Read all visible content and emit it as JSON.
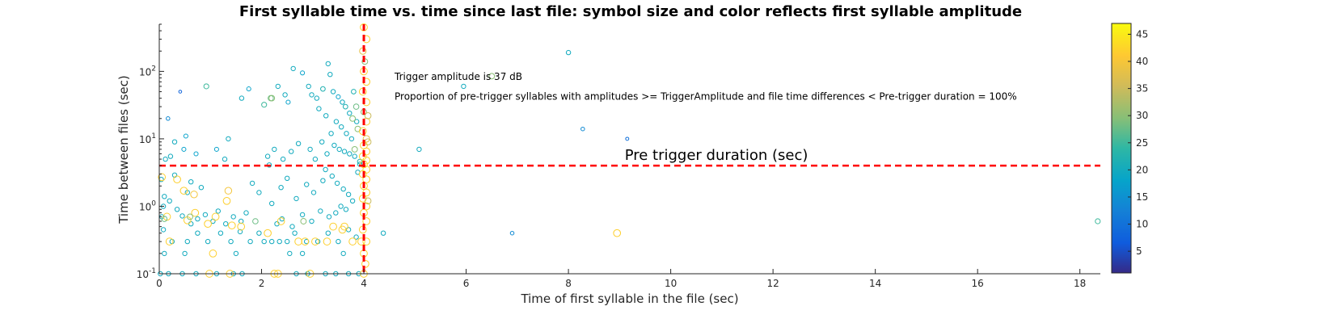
{
  "chart_data": {
    "type": "scatter",
    "title": "First syllable time vs. time since last file: symbol size and color reflects first syllable amplitude",
    "xlabel": "Time of first syllable in the file (sec)",
    "ylabel": "Time between files (sec)",
    "xlim": [
      0,
      18.4
    ],
    "ylim": [
      0.1,
      500
    ],
    "yscale": "log",
    "x_ticks": [
      0,
      2,
      4,
      6,
      8,
      10,
      12,
      14,
      16,
      18
    ],
    "y_ticks": [
      {
        "value": 0.1,
        "base": "10",
        "exp": "-1"
      },
      {
        "value": 1,
        "base": "10",
        "exp": "0"
      },
      {
        "value": 10,
        "base": "10",
        "exp": "1"
      },
      {
        "value": 100,
        "base": "10",
        "exp": "2"
      }
    ],
    "grid": false,
    "colorbar": {
      "range": [
        1,
        47
      ],
      "ticks": [
        5,
        10,
        15,
        20,
        25,
        30,
        35,
        40,
        45
      ],
      "colormap": "parula",
      "position": "right"
    },
    "reference_lines": [
      {
        "orientation": "vertical",
        "x": 4,
        "color": "#ff0000",
        "style": "dashed"
      },
      {
        "orientation": "horizontal",
        "y": 4,
        "color": "#ff0000",
        "style": "dashed"
      }
    ],
    "annotations": [
      {
        "text": "Trigger amplitude is 37 dB",
        "x": 4.6,
        "y": 75
      },
      {
        "text": "Proportion of pre-trigger syllables with amplitudes >= TriggerAmplitude and file time differences < Pre-trigger duration = 100%",
        "x": 4.6,
        "y": 38
      },
      {
        "text": "Pre trigger duration (sec)",
        "x": 9.1,
        "y": 4.9
      }
    ],
    "points": [
      {
        "x": 0.41,
        "y": 50,
        "a": 8
      },
      {
        "x": 0.17,
        "y": 20,
        "a": 14
      },
      {
        "x": 0.92,
        "y": 60,
        "a": 25
      },
      {
        "x": 1.61,
        "y": 40,
        "a": 20
      },
      {
        "x": 1.75,
        "y": 55,
        "a": 18
      },
      {
        "x": 2.05,
        "y": 32,
        "a": 25
      },
      {
        "x": 2.18,
        "y": 40,
        "a": 28
      },
      {
        "x": 2.32,
        "y": 60,
        "a": 20
      },
      {
        "x": 2.46,
        "y": 45,
        "a": 20
      },
      {
        "x": 2.52,
        "y": 35,
        "a": 18
      },
      {
        "x": 2.62,
        "y": 110,
        "a": 20
      },
      {
        "x": 2.8,
        "y": 95,
        "a": 18
      },
      {
        "x": 2.92,
        "y": 60,
        "a": 20
      },
      {
        "x": 2.98,
        "y": 45,
        "a": 20
      },
      {
        "x": 3.08,
        "y": 40,
        "a": 20
      },
      {
        "x": 3.2,
        "y": 55,
        "a": 22
      },
      {
        "x": 3.3,
        "y": 130,
        "a": 20
      },
      {
        "x": 3.34,
        "y": 90,
        "a": 20
      },
      {
        "x": 3.4,
        "y": 50,
        "a": 20
      },
      {
        "x": 3.5,
        "y": 42,
        "a": 18
      },
      {
        "x": 3.58,
        "y": 35,
        "a": 20
      },
      {
        "x": 3.64,
        "y": 30,
        "a": 22
      },
      {
        "x": 3.72,
        "y": 24,
        "a": 20
      },
      {
        "x": 3.8,
        "y": 50,
        "a": 22
      },
      {
        "x": 3.86,
        "y": 18,
        "a": 20
      },
      {
        "x": 3.12,
        "y": 28,
        "a": 20
      },
      {
        "x": 3.26,
        "y": 22,
        "a": 20
      },
      {
        "x": 3.46,
        "y": 18,
        "a": 20
      },
      {
        "x": 3.56,
        "y": 15,
        "a": 20
      },
      {
        "x": 3.66,
        "y": 12,
        "a": 20
      },
      {
        "x": 3.76,
        "y": 10,
        "a": 20
      },
      {
        "x": 3.36,
        "y": 12,
        "a": 20
      },
      {
        "x": 3.18,
        "y": 9,
        "a": 20
      },
      {
        "x": 3.42,
        "y": 8,
        "a": 20
      },
      {
        "x": 3.52,
        "y": 7,
        "a": 20
      },
      {
        "x": 3.62,
        "y": 6.5,
        "a": 20
      },
      {
        "x": 3.72,
        "y": 6,
        "a": 20
      },
      {
        "x": 3.82,
        "y": 5.5,
        "a": 20
      },
      {
        "x": 3.28,
        "y": 6,
        "a": 20
      },
      {
        "x": 3.05,
        "y": 5,
        "a": 20
      },
      {
        "x": 2.95,
        "y": 7,
        "a": 20
      },
      {
        "x": 2.72,
        "y": 8.5,
        "a": 20
      },
      {
        "x": 2.58,
        "y": 6.5,
        "a": 20
      },
      {
        "x": 2.42,
        "y": 5,
        "a": 20
      },
      {
        "x": 2.25,
        "y": 7,
        "a": 20
      },
      {
        "x": 2.12,
        "y": 5.5,
        "a": 20
      },
      {
        "x": 1.35,
        "y": 10,
        "a": 20
      },
      {
        "x": 1.28,
        "y": 5,
        "a": 20
      },
      {
        "x": 1.12,
        "y": 7,
        "a": 18
      },
      {
        "x": 0.72,
        "y": 6,
        "a": 18
      },
      {
        "x": 0.52,
        "y": 11,
        "a": 18
      },
      {
        "x": 0.3,
        "y": 9,
        "a": 20
      },
      {
        "x": 0.48,
        "y": 7,
        "a": 18
      },
      {
        "x": 0.12,
        "y": 5,
        "a": 20
      },
      {
        "x": 0.22,
        "y": 5.5,
        "a": 20
      },
      {
        "x": 3.25,
        "y": 3.5,
        "a": 20
      },
      {
        "x": 3.38,
        "y": 2.8,
        "a": 20
      },
      {
        "x": 3.48,
        "y": 2.2,
        "a": 20
      },
      {
        "x": 3.6,
        "y": 1.8,
        "a": 20
      },
      {
        "x": 3.7,
        "y": 1.5,
        "a": 20
      },
      {
        "x": 3.78,
        "y": 1.2,
        "a": 20
      },
      {
        "x": 3.88,
        "y": 3.2,
        "a": 20
      },
      {
        "x": 3.2,
        "y": 2.4,
        "a": 20
      },
      {
        "x": 3.02,
        "y": 1.6,
        "a": 20
      },
      {
        "x": 2.88,
        "y": 2.1,
        "a": 20
      },
      {
        "x": 2.68,
        "y": 1.3,
        "a": 20
      },
      {
        "x": 2.5,
        "y": 2.6,
        "a": 20
      },
      {
        "x": 2.38,
        "y": 1.9,
        "a": 20
      },
      {
        "x": 2.2,
        "y": 1.1,
        "a": 20
      },
      {
        "x": 1.95,
        "y": 1.6,
        "a": 20
      },
      {
        "x": 1.82,
        "y": 2.2,
        "a": 20
      },
      {
        "x": 3.55,
        "y": 1.0,
        "a": 20
      },
      {
        "x": 3.65,
        "y": 0.9,
        "a": 20
      },
      {
        "x": 3.45,
        "y": 0.8,
        "a": 20
      },
      {
        "x": 3.32,
        "y": 0.7,
        "a": 20
      },
      {
        "x": 3.15,
        "y": 0.85,
        "a": 20
      },
      {
        "x": 2.98,
        "y": 0.6,
        "a": 20
      },
      {
        "x": 2.8,
        "y": 0.75,
        "a": 20
      },
      {
        "x": 2.6,
        "y": 0.5,
        "a": 20
      },
      {
        "x": 2.4,
        "y": 0.65,
        "a": 20
      },
      {
        "x": 2.3,
        "y": 0.55,
        "a": 20
      },
      {
        "x": 1.7,
        "y": 0.8,
        "a": 20
      },
      {
        "x": 1.6,
        "y": 0.6,
        "a": 20
      },
      {
        "x": 1.45,
        "y": 0.7,
        "a": 20
      },
      {
        "x": 1.3,
        "y": 0.55,
        "a": 20
      },
      {
        "x": 1.15,
        "y": 0.85,
        "a": 20
      },
      {
        "x": 1.05,
        "y": 0.6,
        "a": 20
      },
      {
        "x": 0.9,
        "y": 0.75,
        "a": 20
      },
      {
        "x": 0.75,
        "y": 0.65,
        "a": 20
      },
      {
        "x": 0.62,
        "y": 0.55,
        "a": 20
      },
      {
        "x": 0.45,
        "y": 0.72,
        "a": 20
      },
      {
        "x": 0.35,
        "y": 0.9,
        "a": 20
      },
      {
        "x": 0.2,
        "y": 1.2,
        "a": 20
      },
      {
        "x": 0.08,
        "y": 1.0,
        "a": 20
      },
      {
        "x": 0.05,
        "y": 0.7,
        "a": 20
      },
      {
        "x": 0.1,
        "y": 1.4,
        "a": 20
      },
      {
        "x": 0.04,
        "y": 2.5,
        "a": 20
      },
      {
        "x": 0.3,
        "y": 2.9,
        "a": 20
      },
      {
        "x": 0.62,
        "y": 2.3,
        "a": 20
      },
      {
        "x": 0.55,
        "y": 1.6,
        "a": 20
      },
      {
        "x": 0.82,
        "y": 1.9,
        "a": 20
      },
      {
        "x": 0.08,
        "y": 0.45,
        "a": 20
      },
      {
        "x": 0.25,
        "y": 0.3,
        "a": 20
      },
      {
        "x": 0.55,
        "y": 0.3,
        "a": 20
      },
      {
        "x": 0.75,
        "y": 0.4,
        "a": 20
      },
      {
        "x": 0.95,
        "y": 0.3,
        "a": 20
      },
      {
        "x": 1.2,
        "y": 0.4,
        "a": 20
      },
      {
        "x": 1.4,
        "y": 0.3,
        "a": 20
      },
      {
        "x": 1.58,
        "y": 0.42,
        "a": 20
      },
      {
        "x": 1.78,
        "y": 0.3,
        "a": 20
      },
      {
        "x": 1.95,
        "y": 0.4,
        "a": 20
      },
      {
        "x": 2.05,
        "y": 0.3,
        "a": 20
      },
      {
        "x": 2.2,
        "y": 0.3,
        "a": 20
      },
      {
        "x": 2.35,
        "y": 0.3,
        "a": 20
      },
      {
        "x": 2.5,
        "y": 0.3,
        "a": 20
      },
      {
        "x": 2.65,
        "y": 0.4,
        "a": 20
      },
      {
        "x": 2.88,
        "y": 0.3,
        "a": 20
      },
      {
        "x": 3.1,
        "y": 0.3,
        "a": 20
      },
      {
        "x": 3.3,
        "y": 0.4,
        "a": 20
      },
      {
        "x": 3.5,
        "y": 0.3,
        "a": 20
      },
      {
        "x": 3.7,
        "y": 0.45,
        "a": 20
      },
      {
        "x": 3.85,
        "y": 0.35,
        "a": 20
      },
      {
        "x": 0.1,
        "y": 0.2,
        "a": 20
      },
      {
        "x": 0.5,
        "y": 0.2,
        "a": 20
      },
      {
        "x": 1.5,
        "y": 0.2,
        "a": 20
      },
      {
        "x": 2.55,
        "y": 0.2,
        "a": 20
      },
      {
        "x": 2.8,
        "y": 0.2,
        "a": 20
      },
      {
        "x": 3.6,
        "y": 0.2,
        "a": 20
      },
      {
        "x": 0.02,
        "y": 0.1,
        "a": 20
      },
      {
        "x": 0.18,
        "y": 0.1,
        "a": 20
      },
      {
        "x": 0.45,
        "y": 0.1,
        "a": 20
      },
      {
        "x": 0.72,
        "y": 0.1,
        "a": 20
      },
      {
        "x": 1.12,
        "y": 0.1,
        "a": 20
      },
      {
        "x": 1.45,
        "y": 0.1,
        "a": 20
      },
      {
        "x": 1.62,
        "y": 0.1,
        "a": 20
      },
      {
        "x": 2.68,
        "y": 0.1,
        "a": 20
      },
      {
        "x": 2.9,
        "y": 0.1,
        "a": 20
      },
      {
        "x": 3.25,
        "y": 0.1,
        "a": 20
      },
      {
        "x": 3.45,
        "y": 0.1,
        "a": 20
      },
      {
        "x": 3.7,
        "y": 0.1,
        "a": 20
      },
      {
        "x": 3.9,
        "y": 0.1,
        "a": 20
      },
      {
        "x": 0.05,
        "y": 2.7,
        "a": 42
      },
      {
        "x": 0.35,
        "y": 2.5,
        "a": 42
      },
      {
        "x": 0.48,
        "y": 1.7,
        "a": 42
      },
      {
        "x": 0.68,
        "y": 1.5,
        "a": 40
      },
      {
        "x": 0.15,
        "y": 0.7,
        "a": 42
      },
      {
        "x": 0.55,
        "y": 0.62,
        "a": 42
      },
      {
        "x": 0.7,
        "y": 0.8,
        "a": 42
      },
      {
        "x": 0.95,
        "y": 0.55,
        "a": 42
      },
      {
        "x": 1.1,
        "y": 0.7,
        "a": 42
      },
      {
        "x": 1.32,
        "y": 1.2,
        "a": 42
      },
      {
        "x": 1.42,
        "y": 0.52,
        "a": 42
      },
      {
        "x": 1.6,
        "y": 0.5,
        "a": 42
      },
      {
        "x": 1.05,
        "y": 0.2,
        "a": 42
      },
      {
        "x": 0.2,
        "y": 0.3,
        "a": 42
      },
      {
        "x": 2.12,
        "y": 0.4,
        "a": 42
      },
      {
        "x": 2.38,
        "y": 0.6,
        "a": 42
      },
      {
        "x": 2.72,
        "y": 0.3,
        "a": 42
      },
      {
        "x": 2.85,
        "y": 0.3,
        "a": 42
      },
      {
        "x": 3.05,
        "y": 0.3,
        "a": 42
      },
      {
        "x": 3.28,
        "y": 0.3,
        "a": 42
      },
      {
        "x": 3.4,
        "y": 0.5,
        "a": 42
      },
      {
        "x": 3.62,
        "y": 0.5,
        "a": 42
      },
      {
        "x": 3.78,
        "y": 0.3,
        "a": 42
      },
      {
        "x": 2.25,
        "y": 0.1,
        "a": 42
      },
      {
        "x": 2.32,
        "y": 0.1,
        "a": 42
      },
      {
        "x": 0.98,
        "y": 0.1,
        "a": 42
      },
      {
        "x": 1.38,
        "y": 0.1,
        "a": 42
      },
      {
        "x": 2.95,
        "y": 0.1,
        "a": 42
      },
      {
        "x": 1.35,
        "y": 1.7,
        "a": 40
      },
      {
        "x": 3.58,
        "y": 0.45,
        "a": 42
      },
      {
        "x": 3.82,
        "y": 7.0,
        "a": 30
      },
      {
        "x": 3.88,
        "y": 14,
        "a": 30
      },
      {
        "x": 3.78,
        "y": 20,
        "a": 30
      },
      {
        "x": 3.85,
        "y": 30,
        "a": 28
      },
      {
        "x": 2.2,
        "y": 40,
        "a": 30
      },
      {
        "x": 0.6,
        "y": 0.7,
        "a": 30
      },
      {
        "x": 2.82,
        "y": 0.6,
        "a": 30
      },
      {
        "x": 0.1,
        "y": 0.65,
        "a": 28
      },
      {
        "x": 1.88,
        "y": 0.6,
        "a": 28
      },
      {
        "x": 2.15,
        "y": 4.1,
        "a": 20
      },
      {
        "x": 3.92,
        "y": 4.2,
        "a": 20
      },
      {
        "x": 3.92,
        "y": 4.6,
        "a": 22
      },
      {
        "x": 4.0,
        "y": 450,
        "a": 42
      },
      {
        "x": 4.05,
        "y": 300,
        "a": 42
      },
      {
        "x": 3.98,
        "y": 200,
        "a": 38
      },
      {
        "x": 4.02,
        "y": 140,
        "a": 30
      },
      {
        "x": 4.0,
        "y": 100,
        "a": 42
      },
      {
        "x": 4.05,
        "y": 70,
        "a": 42
      },
      {
        "x": 3.98,
        "y": 50,
        "a": 42
      },
      {
        "x": 4.05,
        "y": 35,
        "a": 42
      },
      {
        "x": 4.0,
        "y": 25,
        "a": 30
      },
      {
        "x": 4.05,
        "y": 18,
        "a": 42
      },
      {
        "x": 3.98,
        "y": 13,
        "a": 42
      },
      {
        "x": 4.05,
        "y": 10,
        "a": 38
      },
      {
        "x": 4.0,
        "y": 8,
        "a": 42
      },
      {
        "x": 4.05,
        "y": 6.5,
        "a": 42
      },
      {
        "x": 3.98,
        "y": 5.5,
        "a": 42
      },
      {
        "x": 4.05,
        "y": 4.8,
        "a": 42
      },
      {
        "x": 4.0,
        "y": 4.2,
        "a": 42
      },
      {
        "x": 4.05,
        "y": 3.5,
        "a": 42
      },
      {
        "x": 3.98,
        "y": 3.0,
        "a": 42
      },
      {
        "x": 4.05,
        "y": 2.5,
        "a": 42
      },
      {
        "x": 4.0,
        "y": 2.0,
        "a": 42
      },
      {
        "x": 4.05,
        "y": 1.6,
        "a": 42
      },
      {
        "x": 3.98,
        "y": 1.3,
        "a": 42
      },
      {
        "x": 4.05,
        "y": 1.0,
        "a": 42
      },
      {
        "x": 4.0,
        "y": 0.8,
        "a": 42
      },
      {
        "x": 4.05,
        "y": 0.6,
        "a": 42
      },
      {
        "x": 3.98,
        "y": 0.45,
        "a": 42
      },
      {
        "x": 4.05,
        "y": 0.3,
        "a": 42
      },
      {
        "x": 4.0,
        "y": 0.2,
        "a": 42
      },
      {
        "x": 4.03,
        "y": 0.14,
        "a": 42
      },
      {
        "x": 4.0,
        "y": 0.1,
        "a": 42
      },
      {
        "x": 4.08,
        "y": 22,
        "a": 35
      },
      {
        "x": 4.08,
        "y": 9,
        "a": 35
      },
      {
        "x": 3.95,
        "y": 0.3,
        "a": 42
      },
      {
        "x": 4.08,
        "y": 1.2,
        "a": 35
      },
      {
        "x": 4.38,
        "y": 0.4,
        "a": 20
      },
      {
        "x": 5.08,
        "y": 7,
        "a": 20
      },
      {
        "x": 5.95,
        "y": 60,
        "a": 20
      },
      {
        "x": 6.5,
        "y": 85,
        "a": 30
      },
      {
        "x": 6.9,
        "y": 0.4,
        "a": 14
      },
      {
        "x": 8.0,
        "y": 190,
        "a": 20
      },
      {
        "x": 8.28,
        "y": 14,
        "a": 14
      },
      {
        "x": 9.15,
        "y": 10,
        "a": 10
      },
      {
        "x": 8.95,
        "y": 0.4,
        "a": 42
      },
      {
        "x": 18.35,
        "y": 0.6,
        "a": 25
      }
    ]
  }
}
